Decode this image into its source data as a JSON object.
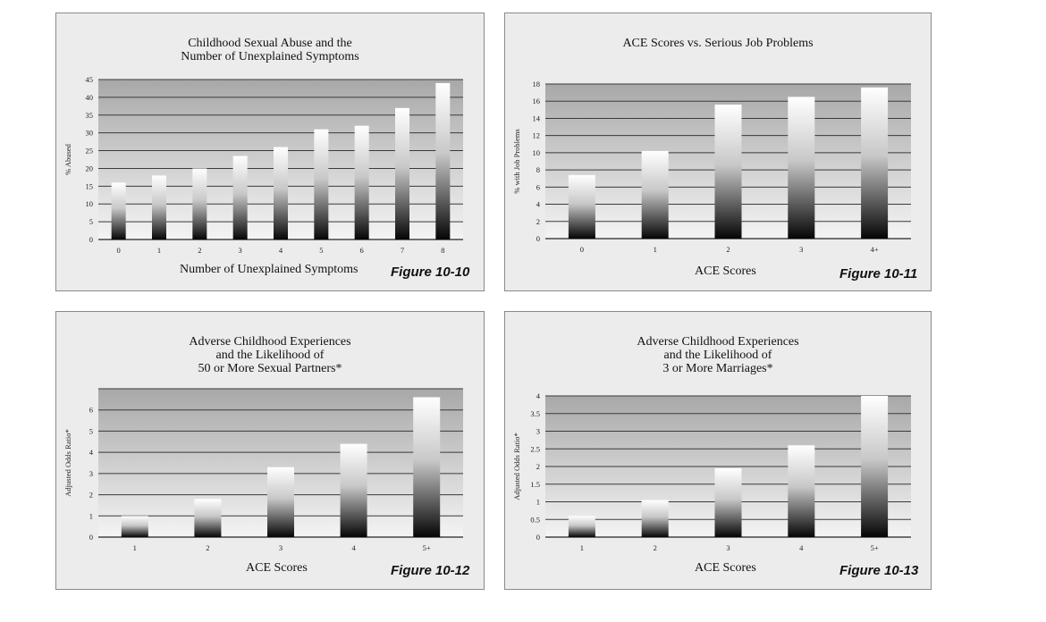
{
  "chart_data": [
    {
      "type": "bar",
      "title_lines": [
        "Childhood Sexual Abuse and the",
        "Number of Unexplained Symptoms"
      ],
      "categories": [
        "0",
        "1",
        "2",
        "3",
        "4",
        "5",
        "6",
        "7",
        "8"
      ],
      "values": [
        16,
        18,
        20,
        23.5,
        26,
        31,
        32,
        37,
        44
      ],
      "xlabel": "Number of Unexplained Symptoms",
      "ylabel": "% Abused",
      "ylim": [
        0,
        45
      ],
      "yticks": [
        "0",
        "5",
        "10",
        "15",
        "20",
        "25",
        "30",
        "35",
        "40",
        "45"
      ],
      "grid": true,
      "figure_label": "Figure 10-10"
    },
    {
      "type": "bar",
      "title_lines": [
        "ACE Scores vs. Serious Job Problems"
      ],
      "categories": [
        "0",
        "1",
        "2",
        "3",
        "4+"
      ],
      "values": [
        7.4,
        10.2,
        15.6,
        16.5,
        17.6
      ],
      "xlabel": "ACE Scores",
      "ylabel": "% with Job Problems",
      "ylim": [
        0,
        18
      ],
      "yticks": [
        "0",
        "2",
        "4",
        "6",
        "8",
        "10",
        "12",
        "14",
        "16",
        "18"
      ],
      "grid": true,
      "figure_label": "Figure 10-11"
    },
    {
      "type": "bar",
      "title_lines": [
        "Adverse Childhood Experiences",
        "and the Likelihood of",
        "50 or More Sexual Partners*"
      ],
      "categories": [
        "1",
        "2",
        "3",
        "4",
        "5+"
      ],
      "values": [
        1.0,
        1.8,
        3.3,
        4.4,
        6.6
      ],
      "xlabel": "ACE Scores",
      "ylabel": "Adjusted Odds Ratio*",
      "ylim": [
        0,
        7
      ],
      "yticks": [
        "0",
        "1",
        "2",
        "3",
        "4",
        "5",
        "6"
      ],
      "grid": true,
      "figure_label": "Figure 10-12"
    },
    {
      "type": "bar",
      "title_lines": [
        "Adverse Childhood Experiences",
        "and the Likelihood of",
        "3 or More Marriages*"
      ],
      "categories": [
        "1",
        "2",
        "3",
        "4",
        "5+"
      ],
      "values": [
        0.6,
        1.05,
        1.95,
        2.6,
        4.0
      ],
      "xlabel": "ACE Scores",
      "ylabel": "Adjusted Odds Ratio*",
      "ylim": [
        0,
        4
      ],
      "yticks": [
        "0",
        "0.5",
        "1",
        "1.5",
        "2",
        "2.5",
        "3",
        "3.5",
        "4"
      ],
      "grid": true,
      "figure_label": "Figure 10-13"
    }
  ]
}
